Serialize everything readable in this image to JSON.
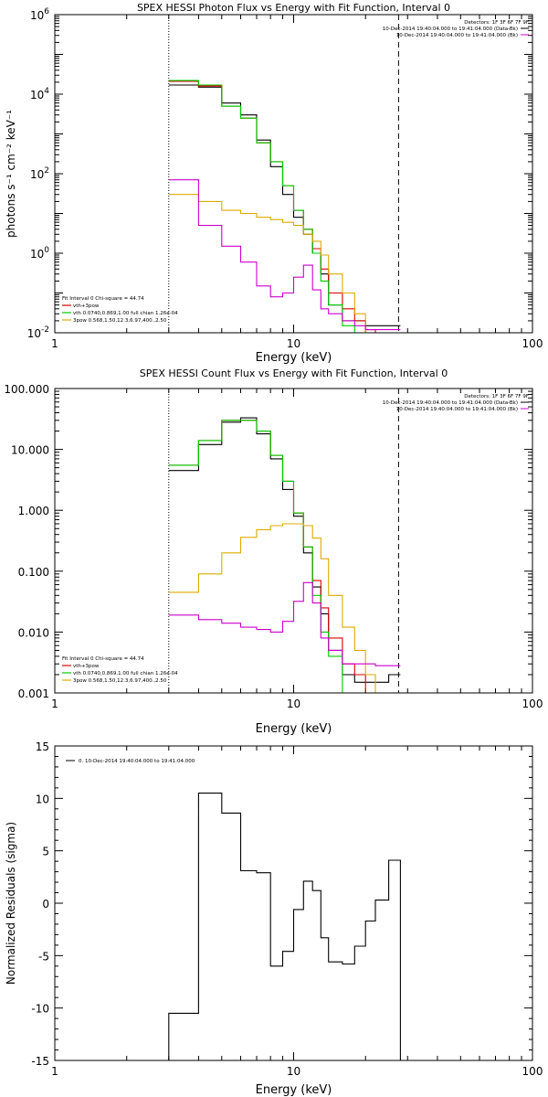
{
  "chart_data": [
    {
      "type": "line",
      "title": "SPEX HESSI Photon Flux vs Energy with Fit Function, Interval 0",
      "xlabel": "Energy (keV)",
      "ylabel": "photons s⁻¹ cm⁻² keV⁻¹",
      "xscale": "log",
      "yscale": "log",
      "xlim": [
        1,
        100
      ],
      "ylim": [
        0.01,
        1000000
      ],
      "yticks": [
        {
          "v": 0.01,
          "b": "10",
          "e": "-2"
        },
        {
          "v": 1,
          "b": "10",
          "e": "0"
        },
        {
          "v": 100,
          "b": "10",
          "e": "2"
        },
        {
          "v": 10000,
          "b": "10",
          "e": "4"
        },
        {
          "v": 1000000,
          "b": "10",
          "e": "6"
        }
      ],
      "xticklabels": [
        {
          "v": 1,
          "t": "1"
        },
        {
          "v": 10,
          "t": "10"
        },
        {
          "v": 100,
          "t": "100"
        }
      ],
      "vlines": [
        {
          "x": 3.0,
          "style": "dotted"
        },
        {
          "x": 27.5,
          "style": "dashed"
        }
      ],
      "legend_top": [
        {
          "text": "Detectors: 1F 3F 6F 7F 9F",
          "color": null
        },
        {
          "text": "10-Dec-2014 19:40:04.000 to 19:41:04.000 (Data-Bk)",
          "color": "#000000"
        },
        {
          "text": "10-Dec-2014 19:40:04.000 to 19:41:04.000 (Bk)",
          "color": "#cc00cc"
        }
      ],
      "legend_bottom": [
        {
          "text": "Fit Interval 0   Chi-square = 44.74",
          "color": null
        },
        {
          "text": "vth+3pow",
          "color": "#dd0000"
        },
        {
          "text": "vth 0.0740,0.869,1.00  full chian 1.26e-04",
          "color": "#00cc00"
        },
        {
          "text": "3pow 0.568,1.50,12.3,6.97,400.,2.50",
          "color": "#ddaa00"
        }
      ],
      "edges": [
        3.0,
        4.0,
        5.0,
        6.0,
        7.0,
        8.0,
        9.0,
        10.0,
        11.0,
        12.0,
        13.0,
        14.0,
        16.0,
        18.0,
        20.0,
        22.0,
        25.0,
        28.0
      ],
      "series": [
        {
          "color": "#000000",
          "values": [
            17000,
            15000,
            6000,
            3000,
            700,
            150,
            30,
            8,
            3,
            1.0,
            0.3,
            0.05,
            0.02,
            0.02,
            0.015,
            0.015,
            0.015
          ]
        },
        {
          "color": "#dd0000",
          "values": [
            21000,
            16000,
            5000,
            2500,
            600,
            200,
            50,
            12,
            4,
            1.3,
            0.4,
            0.1,
            0.04,
            0.02,
            0.012,
            0.01,
            0.01
          ]
        },
        {
          "color": "#00cc00",
          "values": [
            22000,
            17000,
            5000,
            2500,
            600,
            200,
            50,
            12,
            4,
            1.0,
            0.2,
            0.05,
            0.015,
            0.01,
            0.01,
            0.01,
            0.01
          ]
        },
        {
          "color": "#ddaa00",
          "values": [
            30,
            20,
            12,
            10,
            8,
            7,
            6,
            5,
            3,
            2,
            0.9,
            0.3,
            0.1,
            0.03,
            0.01,
            0.01,
            0.01
          ]
        },
        {
          "color": "#cc00cc",
          "values": [
            70,
            5,
            1.5,
            0.6,
            0.15,
            0.08,
            0.1,
            0.25,
            0.5,
            0.12,
            0.04,
            0.03,
            0.02,
            0.015,
            0.012,
            0.012,
            0.012
          ]
        }
      ]
    },
    {
      "type": "line",
      "title": "SPEX HESSI Count Flux vs Energy with Fit Function, Interval 0",
      "xlabel": "Energy (keV)",
      "ylabel": "",
      "xscale": "log",
      "yscale": "log",
      "xlim": [
        1,
        100
      ],
      "ylim": [
        0.001,
        100
      ],
      "yticks": [
        {
          "v": 0.001,
          "t": "0.001"
        },
        {
          "v": 0.01,
          "t": "0.010"
        },
        {
          "v": 0.1,
          "t": "0.100"
        },
        {
          "v": 1,
          "t": "1.000"
        },
        {
          "v": 10,
          "t": "10.000"
        },
        {
          "v": 100,
          "t": "100.000"
        }
      ],
      "xticklabels": [
        {
          "v": 1,
          "t": "1"
        },
        {
          "v": 10,
          "t": "10"
        },
        {
          "v": 100,
          "t": "100"
        }
      ],
      "vlines": [
        {
          "x": 3.0,
          "style": "dotted"
        },
        {
          "x": 27.5,
          "style": "dashed"
        }
      ],
      "legend_top": [
        {
          "text": "Detectors: 1F 3F 6F 7F 9F",
          "color": null
        },
        {
          "text": "10-Dec-2014 19:40:04.000 to 19:41:04.000 (Data-Bk)",
          "color": "#000000"
        },
        {
          "text": "10-Dec-2014 19:40:04.000 to 19:41:04.000 (Bk)",
          "color": "#cc00cc"
        }
      ],
      "legend_bottom": [
        {
          "text": "Fit Interval 0   Chi-square = 44.74",
          "color": null
        },
        {
          "text": "vth+3pow",
          "color": "#dd0000"
        },
        {
          "text": "vth 0.0740,0.869,1.00  full chian 1.26e-04",
          "color": "#00cc00"
        },
        {
          "text": "3pow 0.568,1.50,12.3,6.97,400.,2.50",
          "color": "#ddaa00"
        }
      ],
      "edges": [
        3.0,
        4.0,
        5.0,
        6.0,
        7.0,
        8.0,
        9.0,
        10.0,
        11.0,
        12.0,
        13.0,
        14.0,
        16.0,
        18.0,
        20.0,
        22.0,
        25.0,
        28.0
      ],
      "series": [
        {
          "color": "#000000",
          "values": [
            4.5,
            12,
            28,
            33,
            18,
            7,
            2.2,
            0.8,
            0.2,
            0.055,
            0.02,
            0.005,
            0.002,
            0.0015,
            0.0015,
            0.0015,
            0.002
          ]
        },
        {
          "color": "#dd0000",
          "values": [
            5.5,
            14,
            30,
            30,
            20,
            8,
            3,
            0.9,
            0.25,
            0.07,
            0.025,
            0.008,
            0.003,
            0.002,
            0.001,
            0.001,
            0.001
          ]
        },
        {
          "color": "#00cc00",
          "values": [
            5.5,
            14,
            30,
            30,
            20,
            8,
            3,
            0.9,
            0.25,
            0.04,
            0.01,
            0.004,
            0.001,
            0.001,
            0.001,
            0.001,
            0.001
          ]
        },
        {
          "color": "#ddaa00",
          "values": [
            0.045,
            0.09,
            0.2,
            0.36,
            0.48,
            0.56,
            0.6,
            0.6,
            0.56,
            0.35,
            0.16,
            0.04,
            0.012,
            0.005,
            0.002,
            0.001,
            0.001
          ]
        },
        {
          "color": "#cc00cc",
          "values": [
            0.019,
            0.016,
            0.014,
            0.012,
            0.011,
            0.01,
            0.015,
            0.032,
            0.065,
            0.03,
            0.008,
            0.005,
            0.003,
            0.003,
            0.003,
            0.0028,
            0.0028
          ]
        }
      ]
    },
    {
      "type": "line",
      "title": "",
      "xlabel": "Energy (keV)",
      "ylabel": "Normalized Residuals (sigma)",
      "xscale": "log",
      "yscale": "linear",
      "xlim": [
        1,
        100
      ],
      "ylim": [
        -15,
        15
      ],
      "yticks": [
        {
          "v": -15,
          "t": "-15"
        },
        {
          "v": -10,
          "t": "-10"
        },
        {
          "v": -5,
          "t": "-5"
        },
        {
          "v": 0,
          "t": "0"
        },
        {
          "v": 5,
          "t": "5"
        },
        {
          "v": 10,
          "t": "10"
        },
        {
          "v": 15,
          "t": "15"
        }
      ],
      "xticklabels": [
        {
          "v": 1,
          "t": "1"
        },
        {
          "v": 10,
          "t": "10"
        },
        {
          "v": 100,
          "t": "100"
        }
      ],
      "vlines": [],
      "legend_top": [
        {
          "text": "0. 10-Dec-2014 19:40:04.000 to 19:41:04.000",
          "color": "#000000"
        }
      ],
      "legend_bottom": [],
      "edges": [
        3.0,
        4.0,
        5.0,
        6.0,
        7.0,
        8.0,
        9.0,
        10.0,
        11.0,
        12.0,
        13.0,
        14.0,
        16.0,
        18.0,
        20.0,
        22.0,
        25.0,
        28.0
      ],
      "series": [
        {
          "color": "#000000",
          "values": [
            -10.5,
            10.5,
            8.6,
            3.1,
            2.9,
            -6.0,
            -4.6,
            -0.6,
            2.1,
            1.2,
            -3.3,
            -5.6,
            -5.8,
            -4.1,
            -1.7,
            0.3,
            4.1
          ]
        }
      ],
      "close_to_bottom": true
    }
  ]
}
